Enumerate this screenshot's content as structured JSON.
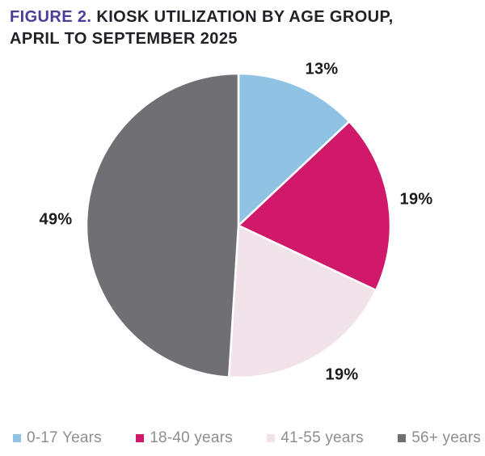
{
  "title": {
    "figure_label": "FIGURE 2.",
    "line1_rest": " KIOSK UTILIZATION BY AGE GROUP,",
    "line2": "APRIL TO SEPTEMBER 2025"
  },
  "colors": {
    "accent_purple": "#4a3e99",
    "title_text": "#232127",
    "legend_text": "#8e8e90",
    "slice_divider": "#ffffff"
  },
  "chart_data": {
    "type": "pie",
    "title": "Kiosk Utilization by Age Group, April to September 2025",
    "start_angle": "12 o'clock, clockwise",
    "legend_position": "bottom",
    "slices": [
      {
        "label": "0-17 Years",
        "value": 13,
        "display": "13%",
        "color": "#90c3e3"
      },
      {
        "label": "18-40 years",
        "value": 19,
        "display": "19%",
        "color": "#d0196b"
      },
      {
        "label": "41-55 years",
        "value": 19,
        "display": "19%",
        "color": "#f2e2e9"
      },
      {
        "label": "56+ years",
        "value": 49,
        "display": "49%",
        "color": "#706f74"
      }
    ]
  }
}
